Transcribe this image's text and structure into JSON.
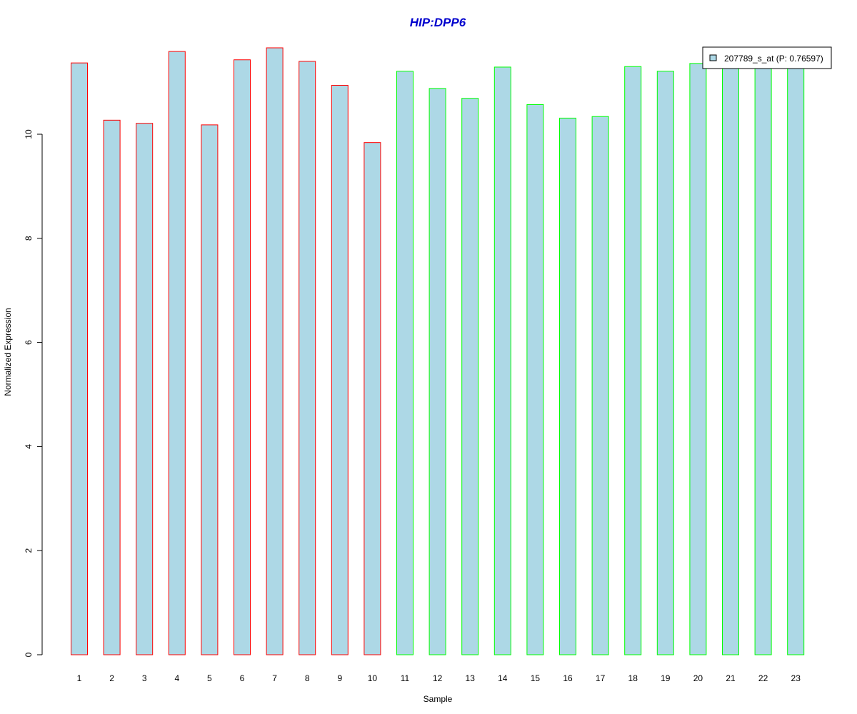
{
  "chart_data": {
    "type": "bar",
    "title": "HIP:DPP6",
    "xlabel": "Sample",
    "ylabel": "Normalized Expression",
    "ylim": [
      0,
      11.8
    ],
    "yticks": [
      "0",
      "2",
      "4",
      "6",
      "8",
      "10"
    ],
    "categories": [
      "1",
      "2",
      "3",
      "4",
      "5",
      "6",
      "7",
      "8",
      "9",
      "10",
      "11",
      "12",
      "13",
      "14",
      "15",
      "16",
      "17",
      "18",
      "19",
      "20",
      "21",
      "22",
      "23"
    ],
    "series": [
      {
        "name": "207789_s_at (P: 0.76597)",
        "values": [
          11.37,
          10.27,
          10.21,
          11.59,
          10.18,
          11.43,
          11.66,
          11.4,
          10.94,
          9.84,
          11.21,
          10.88,
          10.69,
          11.29,
          10.57,
          10.31,
          10.34,
          11.3,
          11.21,
          11.36,
          11.3,
          11.3,
          11.3
        ]
      }
    ],
    "border_colors": [
      "#ff0000",
      "#ff0000",
      "#ff0000",
      "#ff0000",
      "#ff0000",
      "#ff0000",
      "#ff0000",
      "#ff0000",
      "#ff0000",
      "#ff0000",
      "#00ff00",
      "#00ff00",
      "#00ff00",
      "#00ff00",
      "#00ff00",
      "#00ff00",
      "#00ff00",
      "#00ff00",
      "#00ff00",
      "#00ff00",
      "#00ff00",
      "#00ff00",
      "#00ff00"
    ],
    "fill_color": "#add8e6",
    "title_color": "#0000cd",
    "grid": false,
    "legend_position": "top-right"
  }
}
